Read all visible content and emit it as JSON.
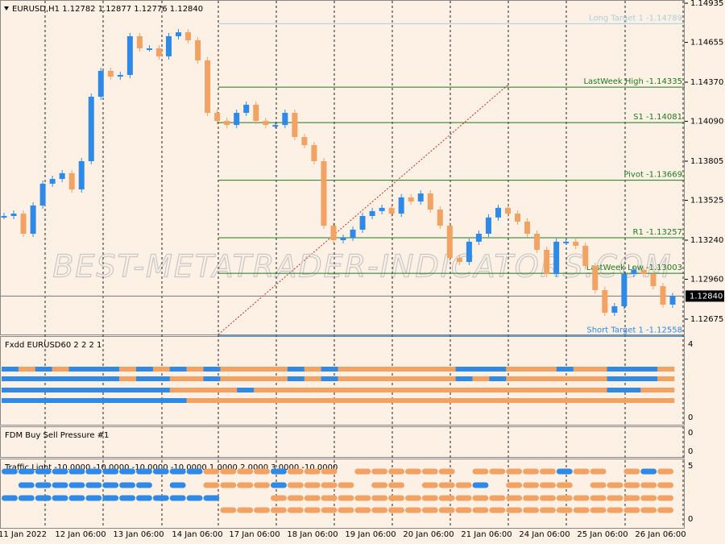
{
  "main_chart": {
    "header": "EURUSD,H1  1.12782 1.12877 1.12776 1.12840",
    "watermark": "BEST-METATRADER-INDICATORS.COM",
    "price_ticks": [
      {
        "value": 1.14935,
        "label": "1.14935"
      },
      {
        "value": 1.14655,
        "label": "1.14655"
      },
      {
        "value": 1.1437,
        "label": "1.14370"
      },
      {
        "value": 1.1409,
        "label": "1.14090"
      },
      {
        "value": 1.13805,
        "label": "1.13805"
      },
      {
        "value": 1.13525,
        "label": "1.13525"
      },
      {
        "value": 1.1324,
        "label": "1.13240"
      },
      {
        "value": 1.1296,
        "label": "1.12960"
      },
      {
        "value": 1.12675,
        "label": "1.12675"
      }
    ],
    "current_price": {
      "value": 1.1284,
      "label": "1.12840"
    },
    "levels": [
      {
        "value": 1.14789,
        "label": "Long Target 1 -1.14789",
        "color": "#a9cfe0"
      },
      {
        "value": 1.14335,
        "label": "LastWeek High -1.14335",
        "color": "#1f7a1f"
      },
      {
        "value": 1.14081,
        "label": "S1 -1.14081",
        "color": "#1f7a1f"
      },
      {
        "value": 1.13669,
        "label": "Pivot -1.13669",
        "color": "#1f7a1f"
      },
      {
        "value": 1.13257,
        "label": "R1 -1.13257",
        "color": "#1f7a1f"
      },
      {
        "value": 1.13003,
        "label": "LastWeek Low -1.13003",
        "color": "#1f7a1f"
      },
      {
        "value": 1.12558,
        "label": "Short Target 1 -1.12558",
        "color": "#2e8ae6"
      }
    ],
    "closes": [
      1.13413,
      1.1343,
      1.13286,
      1.13488,
      1.13644,
      1.13678,
      1.13719,
      1.13603,
      1.13805,
      1.14266,
      1.14451,
      1.1441,
      1.14422,
      1.14699,
      1.14612,
      1.14612,
      1.14555,
      1.14699,
      1.14727,
      1.1467,
      1.14526,
      1.14151,
      1.14093,
      1.14064,
      1.14151,
      1.14209,
      1.14093,
      1.14064,
      1.14064,
      1.14151,
      1.13978,
      1.1392,
      1.13805,
      1.13344,
      1.1324,
      1.13257,
      1.13315,
      1.13413,
      1.13448,
      1.13471,
      1.1343,
      1.13546,
      1.13517,
      1.13574,
      1.13459,
      1.13344,
      1.13113,
      1.13084,
      1.13229,
      1.13286,
      1.13402,
      1.13471,
      1.1343,
      1.13373,
      1.13286,
      1.13171,
      1.12998,
      1.13229,
      1.13229,
      1.132,
      1.13056,
      1.12883,
      1.12721,
      1.12767,
      1.12998,
      1.13027,
      1.12998,
      1.12911,
      1.12779,
      1.1284
    ]
  },
  "fxdd_panel": {
    "title": "Fxdd EURUSD60 2 2 2 1",
    "axis_top": "4",
    "axis_bottom": "0",
    "rows": [
      [
        1,
        0,
        1,
        0,
        1,
        1,
        1,
        0,
        1,
        0,
        1,
        0,
        1,
        0,
        0,
        0,
        0,
        1,
        0,
        1,
        0,
        0,
        0,
        0,
        0,
        0,
        0,
        1,
        1,
        1,
        0,
        0,
        0,
        1,
        0,
        0,
        1,
        1,
        1,
        0
      ],
      [
        1,
        1,
        1,
        1,
        1,
        1,
        1,
        0,
        1,
        1,
        0,
        0,
        1,
        0,
        0,
        0,
        0,
        1,
        0,
        1,
        0,
        0,
        0,
        0,
        0,
        0,
        0,
        1,
        0,
        1,
        0,
        0,
        0,
        0,
        0,
        0,
        1,
        1,
        1,
        0
      ],
      [
        1,
        1,
        1,
        1,
        1,
        1,
        1,
        1,
        1,
        1,
        0,
        0,
        0,
        0,
        1,
        0,
        0,
        0,
        0,
        0,
        0,
        0,
        0,
        0,
        0,
        0,
        0,
        0,
        0,
        0,
        0,
        0,
        0,
        0,
        0,
        0,
        1,
        1,
        0,
        0
      ],
      [
        1,
        1,
        1,
        1,
        1,
        1,
        1,
        1,
        1,
        1,
        1,
        0,
        0,
        0,
        0,
        0,
        0,
        0,
        0,
        0,
        0,
        0,
        0,
        0,
        0,
        0,
        0,
        0,
        0,
        0,
        0,
        0,
        0,
        0,
        0,
        0,
        0,
        0,
        0,
        0
      ]
    ]
  },
  "pressure_panel": {
    "title": "FDM Buy Sell Pressure #1",
    "axis_top": "0",
    "axis_bottom": "0"
  },
  "traffic_panel": {
    "title": "Traffic Light -10.0000 -10.0000 -10.0000 -10.0000 1.0000 2.0000 3.0000 -10.0000",
    "axis_top": "5",
    "axis_bottom": "0",
    "rows": [
      [
        1,
        1,
        1,
        1,
        1,
        1,
        1,
        1,
        1,
        1,
        1,
        1,
        0,
        0,
        0,
        0,
        1,
        0,
        0,
        0,
        null,
        0,
        0,
        0,
        0,
        0,
        0,
        null,
        0,
        0,
        0,
        0,
        0,
        1,
        0,
        0,
        null,
        0,
        1,
        0
      ],
      [
        null,
        1,
        1,
        1,
        1,
        1,
        1,
        1,
        1,
        null,
        1,
        null,
        0,
        0,
        0,
        0,
        1,
        0,
        0,
        0,
        0,
        null,
        0,
        0,
        null,
        0,
        0,
        0,
        1,
        null,
        0,
        0,
        0,
        0,
        null,
        0,
        0,
        0,
        0,
        0
      ],
      [
        1,
        1,
        1,
        1,
        1,
        1,
        1,
        1,
        1,
        1,
        1,
        1,
        1,
        null,
        null,
        null,
        0,
        0,
        0,
        0,
        0,
        0,
        0,
        0,
        0,
        0,
        0,
        0,
        0,
        0,
        0,
        0,
        0,
        0,
        0,
        0,
        0,
        0,
        0,
        0
      ],
      [
        null,
        null,
        null,
        null,
        null,
        null,
        null,
        null,
        null,
        null,
        null,
        null,
        null,
        0,
        0,
        0,
        0,
        0,
        0,
        0,
        0,
        0,
        0,
        0,
        0,
        0,
        0,
        0,
        0,
        0,
        0,
        0,
        0,
        0,
        0,
        0,
        0,
        0,
        0,
        0
      ]
    ]
  },
  "time_axis": {
    "labels": [
      "11 Jan 2022",
      "12 Jan 06:00",
      "13 Jan 06:00",
      "14 Jan 06:00",
      "17 Jan 06:00",
      "18 Jan 06:00",
      "19 Jan 06:00",
      "20 Jan 06:00",
      "21 Jan 06:00",
      "24 Jan 06:00",
      "25 Jan 06:00",
      "26 Jan 06:00"
    ]
  }
}
